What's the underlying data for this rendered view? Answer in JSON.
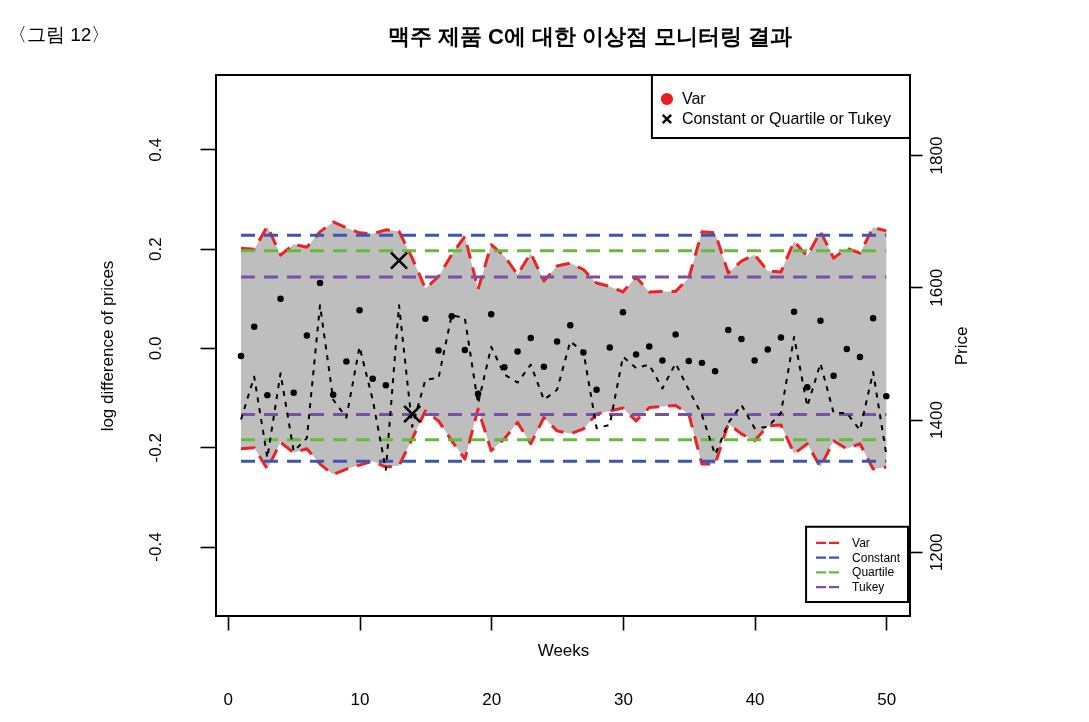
{
  "chart_data": {
    "type": "line",
    "title": "맥주 제품 C에 대한 이상점 모니터링 결과",
    "annotations": [
      "〈그림 12〉"
    ],
    "xlabel": "Weeks",
    "ylabel": "log difference of prices",
    "y2label": "Price",
    "x": [
      1,
      2,
      3,
      4,
      5,
      6,
      7,
      8,
      9,
      10,
      11,
      12,
      13,
      14,
      15,
      16,
      17,
      18,
      19,
      20,
      21,
      22,
      23,
      24,
      25,
      26,
      27,
      28,
      29,
      30,
      31,
      32,
      33,
      34,
      35,
      36,
      37,
      38,
      39,
      40,
      41,
      42,
      43,
      44,
      45,
      46,
      47,
      48,
      49,
      50
    ],
    "xlim": [
      -0.9,
      51.8
    ],
    "xticks": [
      0,
      10,
      20,
      30,
      40,
      50
    ],
    "ylim": [
      -0.54,
      0.55
    ],
    "yticks": [
      -0.4,
      -0.2,
      {
        "value": 0,
        "label": "0.0"
      },
      0.2,
      0.4
    ],
    "y2lim": [
      1103,
      1921
    ],
    "y2ticks": [
      1200,
      1400,
      1600,
      1800
    ],
    "grid": false,
    "legend": "right",
    "series": [
      {
        "color": "#ee2222",
        "line_style": "dashed",
        "name": "Var",
        "values": [
          0.201,
          0.199,
          0.245,
          0.187,
          0.209,
          0.203,
          0.234,
          0.254,
          0.242,
          0.232,
          0.23,
          0.238,
          0.235,
          0.181,
          0.12,
          0.144,
          0.188,
          0.225,
          0.118,
          0.208,
          0.185,
          0.148,
          0.191,
          0.135,
          0.165,
          0.171,
          0.158,
          0.131,
          0.124,
          0.113,
          0.143,
          0.113,
          0.114,
          0.114,
          0.141,
          0.234,
          0.232,
          0.151,
          0.175,
          0.188,
          0.155,
          0.153,
          0.215,
          0.185,
          0.235,
          0.181,
          0.201,
          0.191,
          0.243,
          0.236
        ],
        "upper": [
          0.201,
          0.199,
          0.245,
          0.187,
          0.209,
          0.203,
          0.234,
          0.254,
          0.242,
          0.232,
          0.23,
          0.238,
          0.235,
          0.181,
          0.12,
          0.144,
          0.188,
          0.225,
          0.118,
          0.208,
          0.185,
          0.148,
          0.191,
          0.135,
          0.165,
          0.171,
          0.158,
          0.131,
          0.124,
          0.113,
          0.143,
          0.113,
          0.114,
          0.114,
          0.141,
          0.234,
          0.232,
          0.151,
          0.175,
          0.188,
          0.155,
          0.153,
          0.215,
          0.185,
          0.235,
          0.181,
          0.201,
          0.191,
          0.243,
          0.236
        ],
        "lower": [
          -0.203,
          -0.201,
          -0.244,
          -0.19,
          -0.211,
          -0.203,
          -0.234,
          -0.255,
          -0.244,
          -0.236,
          -0.228,
          -0.24,
          -0.237,
          -0.183,
          -0.127,
          -0.147,
          -0.187,
          -0.224,
          -0.123,
          -0.207,
          -0.183,
          -0.15,
          -0.193,
          -0.14,
          -0.167,
          -0.173,
          -0.163,
          -0.133,
          -0.127,
          -0.121,
          -0.147,
          -0.12,
          -0.118,
          -0.116,
          -0.133,
          -0.234,
          -0.234,
          -0.153,
          -0.173,
          -0.187,
          -0.157,
          -0.155,
          -0.213,
          -0.193,
          -0.24,
          -0.187,
          -0.203,
          -0.193,
          -0.244,
          -0.24
        ]
      },
      {
        "color": "#ee2222",
        "line_style": "dashed",
        "values": [
          -0.203,
          -0.201,
          -0.244,
          -0.19,
          -0.211,
          -0.203,
          -0.234,
          -0.255,
          -0.244,
          -0.236,
          -0.228,
          -0.24,
          -0.237,
          -0.183,
          -0.127,
          -0.147,
          -0.187,
          -0.224,
          -0.123,
          -0.207,
          -0.183,
          -0.15,
          -0.193,
          -0.14,
          -0.167,
          -0.173,
          -0.163,
          -0.133,
          -0.127,
          -0.121,
          -0.147,
          -0.12,
          -0.118,
          -0.116,
          -0.133,
          -0.234,
          -0.234,
          -0.153,
          -0.173,
          -0.187,
          -0.157,
          -0.155,
          -0.213,
          -0.193,
          -0.24,
          -0.187,
          -0.203,
          -0.193,
          -0.244,
          -0.24
        ]
      },
      {
        "color": "#3b55b5",
        "line_style": "dashed",
        "name": "Constant",
        "x": [
          1,
          50
        ],
        "values": [
          0.227,
          0.227
        ]
      },
      {
        "color": "#3b55b5",
        "line_style": "dashed",
        "x": [
          1,
          50
        ],
        "values": [
          -0.228,
          -0.228
        ]
      },
      {
        "color": "#66bb3c",
        "line_style": "dashed",
        "name": "Quartile",
        "x": [
          1,
          50
        ],
        "values": [
          0.196,
          0.196
        ]
      },
      {
        "color": "#66bb3c",
        "line_style": "dashed",
        "x": [
          1,
          50
        ],
        "values": [
          -0.185,
          -0.185
        ]
      },
      {
        "color": "#7a4fa6",
        "line_style": "dashed",
        "name": "Tukey",
        "x": [
          1,
          50
        ],
        "values": [
          0.143,
          0.143
        ]
      },
      {
        "color": "#7a4fa6",
        "line_style": "dashed",
        "x": [
          1,
          50
        ],
        "values": [
          -0.134,
          -0.134
        ]
      },
      {
        "axis": "y2",
        "color": "#000000",
        "line_style": "dotted",
        "values": [
          1400,
          1465,
          1342,
          1470,
          1352,
          1372,
          1573,
          1430,
          1403,
          1510,
          1430,
          1324,
          1573,
          1389,
          1460,
          1463,
          1558,
          1553,
          1424,
          1510,
          1468,
          1456,
          1483,
          1430,
          1445,
          1518,
          1503,
          1387,
          1392,
          1495,
          1478,
          1483,
          1447,
          1485,
          1445,
          1407,
          1347,
          1395,
          1422,
          1387,
          1389,
          1410,
          1525,
          1420,
          1485,
          1410,
          1410,
          1384,
          1472,
          1347
        ]
      },
      {
        "type": "scatter",
        "color": "#000000",
        "marker": "circle",
        "values": [
          -0.016,
          0.043,
          -0.095,
          0.099,
          -0.09,
          0.025,
          0.131,
          -0.094,
          -0.027,
          0.076,
          -0.062,
          -0.075,
          null,
          null,
          0.059,
          -0.005,
          0.064,
          -0.004,
          -0.092,
          0.068,
          -0.039,
          -0.007,
          0.02,
          -0.038,
          0.013,
          0.046,
          -0.009,
          -0.084,
          0.001,
          0.072,
          -0.013,
          0.003,
          -0.025,
          0.027,
          -0.026,
          -0.03,
          -0.047,
          0.036,
          0.018,
          -0.025,
          -0.003,
          0.021,
          0.073,
          -0.079,
          0.055,
          -0.056,
          -0.002,
          -0.018,
          0.06,
          -0.097
        ]
      },
      {
        "type": "scatter",
        "name": "Var",
        "color": "#ee1c25",
        "marker": "circle",
        "values": [
          null,
          null,
          null,
          null,
          null,
          null,
          null,
          null,
          null,
          null,
          null,
          null,
          null,
          null,
          null,
          null,
          null,
          null,
          null,
          null,
          null,
          null,
          null,
          null,
          null,
          null,
          null,
          null,
          null,
          null,
          null,
          null,
          null,
          null,
          null,
          null,
          null,
          null,
          null,
          null,
          null,
          null,
          null,
          null,
          null,
          null,
          null,
          null,
          null,
          null
        ]
      },
      {
        "type": "scatter",
        "name": "Constant or Quartile or Tukey",
        "color": "#000000",
        "marker": "cross",
        "x": [
          13,
          14
        ],
        "values": [
          0.176,
          -0.133
        ]
      }
    ]
  }
}
